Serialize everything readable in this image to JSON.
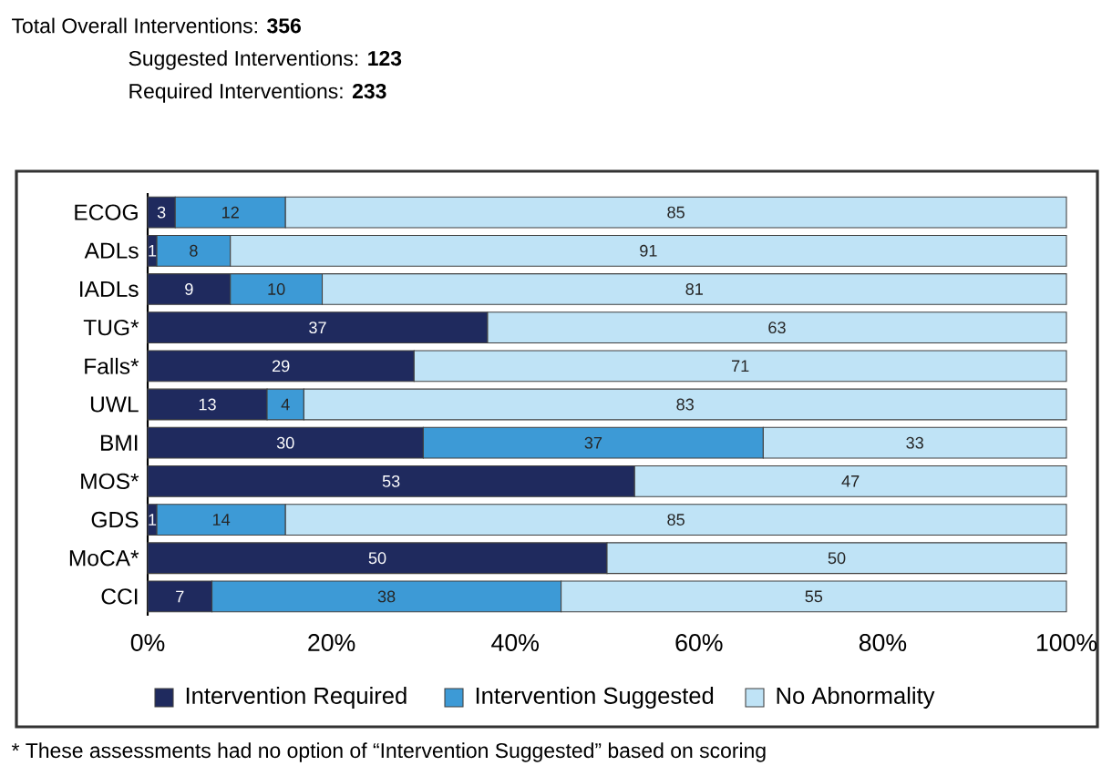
{
  "chart_data": {
    "type": "bar",
    "orientation": "horizontal",
    "stacked": true,
    "data_labels": true,
    "legend": "bottom",
    "title": "Total Overall Interventions: **356**",
    "subtitle": "Suggested Interventions: **123**",
    "annotations": [
      "Required Interventions: **233**",
      "* These assessments had no option of “Intervention Suggested” based on scoring"
    ],
    "categories": [
      "ECOG",
      "ADLs",
      "IADLs",
      "TUG*",
      "Falls*",
      "UWL",
      "BMI",
      "MOS*",
      "GDS",
      "MoCA*",
      "CCI"
    ],
    "series": [
      {
        "name": "Intervention Required",
        "color": "#1f2a5e",
        "values": [
          3,
          1,
          9,
          37,
          29,
          13,
          30,
          53,
          1,
          50,
          7
        ]
      },
      {
        "name": "Intervention Suggested",
        "color": "#3d9ad6",
        "values": [
          12,
          8,
          10,
          null,
          null,
          4,
          37,
          null,
          14,
          null,
          38
        ]
      },
      {
        "name": "No Abnormality",
        "color": "#bfe3f6",
        "values": [
          85,
          91,
          81,
          63,
          71,
          83,
          33,
          47,
          85,
          50,
          55
        ]
      }
    ],
    "xlim": [
      0,
      100
    ],
    "xticks": [
      {
        "value": 0,
        "label": "0%"
      },
      {
        "value": 20,
        "label": "20%"
      },
      {
        "value": 40,
        "label": "40%"
      },
      {
        "value": 60,
        "label": "60%"
      },
      {
        "value": 80,
        "label": "80%"
      },
      {
        "value": 100,
        "label": "100%"
      }
    ]
  }
}
